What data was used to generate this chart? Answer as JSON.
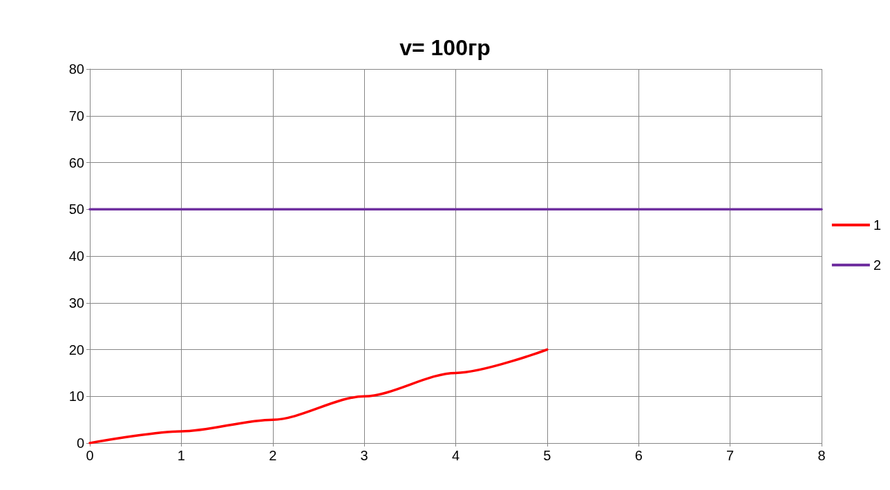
{
  "chart_data": {
    "type": "line",
    "title": "v= 100гр",
    "series": [
      {
        "name": "1",
        "color": "#ff0000",
        "x": [
          0,
          1,
          2,
          3,
          4,
          5
        ],
        "values": [
          0,
          2.5,
          5,
          10,
          15,
          20
        ]
      },
      {
        "name": "2",
        "color": "#7030a0",
        "x": [
          0,
          1,
          2,
          3,
          4,
          5,
          6,
          7,
          8
        ],
        "values": [
          50,
          50,
          50,
          50,
          50,
          50,
          50,
          50,
          50
        ]
      }
    ],
    "xlim": [
      0,
      8
    ],
    "xticks": [
      0,
      1,
      2,
      3,
      4,
      5,
      6,
      7,
      8
    ],
    "ylim": [
      0,
      80
    ],
    "yticks": [
      0,
      10,
      20,
      30,
      40,
      50,
      60,
      70,
      80
    ],
    "grid": true,
    "legend": "right",
    "marker": "none",
    "line_style": "solid"
  }
}
